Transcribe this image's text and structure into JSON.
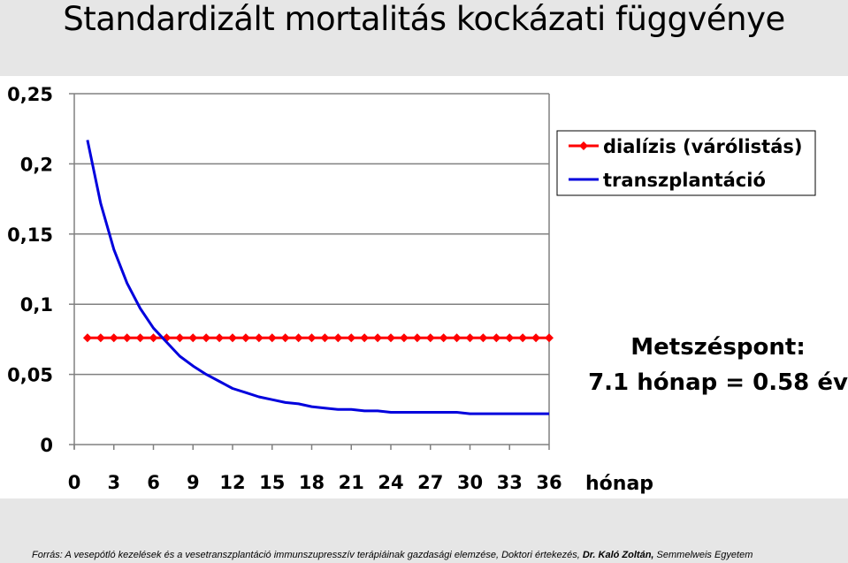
{
  "slide": {
    "title": "Standardizált mortalitás kockázati függvénye"
  },
  "source": {
    "prefix": "Forrás: A vesepótló kezelések és a vesetranszplantáció immunszupresszív terápiáinak gazdasági elemzése, Doktori értekezés, ",
    "author": "Dr. Kaló Zoltán,",
    "suffix": " Semmelweis Egyetem"
  },
  "annotation": {
    "line1": "Metszéspont:",
    "line2": "7.1 hónap = 0.58 év"
  },
  "colors": {
    "dialysis": "#ff0000",
    "transplant": "#0000dd",
    "grid": "#808080",
    "tick_text": "#000000"
  },
  "chart_data": {
    "type": "line",
    "title": "",
    "xlabel": "hónap",
    "ylabel": "",
    "xlim": [
      0,
      36
    ],
    "ylim": [
      0,
      0.25
    ],
    "x_ticks": [
      0,
      3,
      6,
      9,
      12,
      15,
      18,
      21,
      24,
      27,
      30,
      33,
      36
    ],
    "x_tick_labels": [
      "0",
      "3",
      "6",
      "9",
      "12",
      "15",
      "18",
      "21",
      "24",
      "27",
      "30",
      "33",
      "36"
    ],
    "y_ticks": [
      0,
      0.05,
      0.1,
      0.15,
      0.2,
      0.25
    ],
    "y_tick_labels": [
      "0",
      "0,05",
      "0,1",
      "0,15",
      "0,2",
      "0,25"
    ],
    "grid": "horizontal",
    "legend_position": "top-right",
    "series": [
      {
        "name": "dialízis (várólistás)",
        "color": "#ff0000",
        "marker": "diamond",
        "x": [
          1,
          2,
          3,
          4,
          5,
          6,
          7,
          8,
          9,
          10,
          11,
          12,
          13,
          14,
          15,
          16,
          17,
          18,
          19,
          20,
          21,
          22,
          23,
          24,
          25,
          26,
          27,
          28,
          29,
          30,
          31,
          32,
          33,
          34,
          35,
          36
        ],
        "y": [
          0.076,
          0.076,
          0.076,
          0.076,
          0.076,
          0.076,
          0.076,
          0.076,
          0.076,
          0.076,
          0.076,
          0.076,
          0.076,
          0.076,
          0.076,
          0.076,
          0.076,
          0.076,
          0.076,
          0.076,
          0.076,
          0.076,
          0.076,
          0.076,
          0.076,
          0.076,
          0.076,
          0.076,
          0.076,
          0.076,
          0.076,
          0.076,
          0.076,
          0.076,
          0.076,
          0.076
        ]
      },
      {
        "name": "transzplantáció",
        "color": "#0000dd",
        "marker": "none",
        "x": [
          1,
          2,
          3,
          4,
          5,
          6,
          7,
          8,
          9,
          10,
          11,
          12,
          13,
          14,
          15,
          16,
          17,
          18,
          19,
          20,
          21,
          22,
          23,
          24,
          25,
          26,
          27,
          28,
          29,
          30,
          31,
          32,
          33,
          34,
          35,
          36
        ],
        "y": [
          0.217,
          0.172,
          0.139,
          0.115,
          0.097,
          0.083,
          0.073,
          0.063,
          0.056,
          0.05,
          0.045,
          0.04,
          0.037,
          0.034,
          0.032,
          0.03,
          0.029,
          0.027,
          0.026,
          0.025,
          0.025,
          0.024,
          0.024,
          0.023,
          0.023,
          0.023,
          0.023,
          0.023,
          0.023,
          0.022,
          0.022,
          0.022,
          0.022,
          0.022,
          0.022,
          0.022
        ]
      }
    ]
  }
}
